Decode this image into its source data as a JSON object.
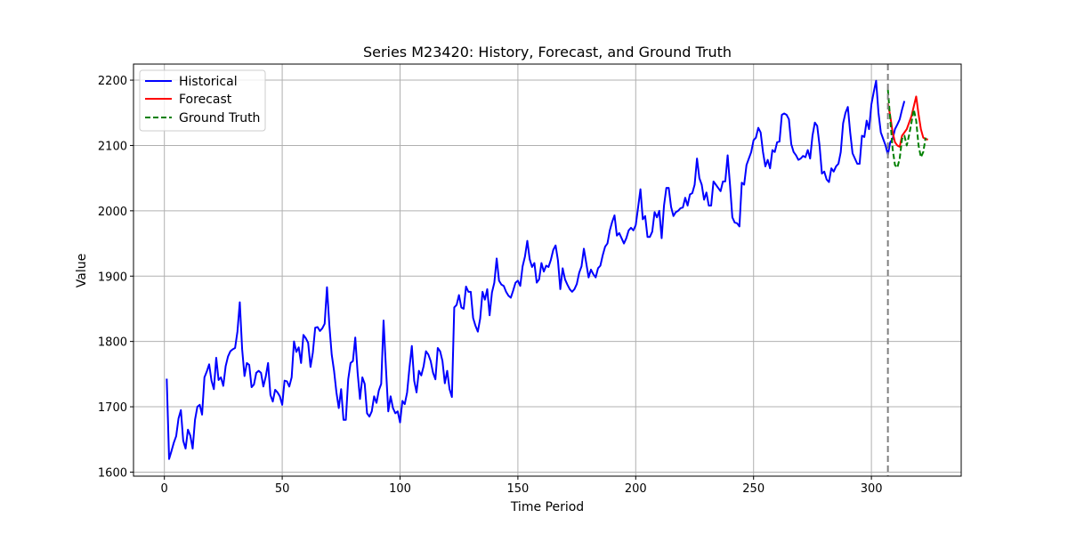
{
  "chart_data": {
    "type": "line",
    "title": "Series M23420: History, Forecast, and Ground Truth",
    "xlabel": "Time Period",
    "ylabel": "Value",
    "xlim": [
      -13.1,
      338.1
    ],
    "ylim": [
      1593.8,
      2224.6
    ],
    "xticks": [
      0,
      50,
      100,
      150,
      200,
      250,
      300
    ],
    "yticks": [
      1600,
      1700,
      1800,
      1900,
      2000,
      2100,
      2200
    ],
    "grid": true,
    "legend_position": "top-left",
    "forecast_start_marker": 307,
    "series": [
      {
        "name": "Historical",
        "color": "#0000ff",
        "style": "solid",
        "x_start": 1,
        "values": [
          1743,
          1620,
          1632,
          1645,
          1655,
          1682,
          1695,
          1648,
          1636,
          1665,
          1656,
          1636,
          1680,
          1700,
          1703,
          1688,
          1745,
          1754,
          1765,
          1740,
          1727,
          1775,
          1741,
          1745,
          1732,
          1762,
          1777,
          1785,
          1788,
          1790,
          1815,
          1860,
          1788,
          1747,
          1767,
          1764,
          1730,
          1734,
          1752,
          1755,
          1752,
          1731,
          1746,
          1767,
          1718,
          1708,
          1726,
          1722,
          1716,
          1703,
          1740,
          1739,
          1731,
          1745,
          1800,
          1784,
          1791,
          1767,
          1810,
          1805,
          1798,
          1761,
          1783,
          1821,
          1822,
          1816,
          1820,
          1827,
          1883,
          1825,
          1780,
          1755,
          1722,
          1698,
          1727,
          1680,
          1680,
          1742,
          1767,
          1770,
          1806,
          1752,
          1712,
          1745,
          1735,
          1690,
          1685,
          1693,
          1716,
          1706,
          1725,
          1735,
          1832,
          1760,
          1693,
          1716,
          1698,
          1690,
          1693,
          1676,
          1709,
          1704,
          1722,
          1760,
          1793,
          1740,
          1722,
          1755,
          1748,
          1762,
          1785,
          1780,
          1770,
          1752,
          1742,
          1790,
          1785,
          1770,
          1736,
          1755,
          1727,
          1715,
          1852,
          1856,
          1871,
          1852,
          1850,
          1884,
          1876,
          1876,
          1836,
          1824,
          1815,
          1835,
          1876,
          1864,
          1880,
          1840,
          1875,
          1890,
          1927,
          1893,
          1887,
          1885,
          1876,
          1870,
          1867,
          1878,
          1890,
          1893,
          1885,
          1915,
          1930,
          1954,
          1926,
          1914,
          1920,
          1890,
          1895,
          1920,
          1907,
          1916,
          1914,
          1925,
          1940,
          1947,
          1924,
          1880,
          1912,
          1895,
          1887,
          1880,
          1876,
          1880,
          1888,
          1905,
          1915,
          1942,
          1920,
          1898,
          1910,
          1903,
          1898,
          1912,
          1916,
          1932,
          1945,
          1950,
          1970,
          1983,
          1993,
          1962,
          1966,
          1958,
          1950,
          1958,
          1970,
          1974,
          1970,
          1978,
          2005,
          2033,
          1987,
          1992,
          1960,
          1960,
          1968,
          1998,
          1990,
          2000,
          1958,
          2008,
          2035,
          2035,
          2006,
          1992,
          1998,
          2000,
          2004,
          2005,
          2020,
          2008,
          2025,
          2027,
          2040,
          2080,
          2050,
          2040,
          2017,
          2028,
          2008,
          2008,
          2045,
          2040,
          2035,
          2030,
          2045,
          2045,
          2085,
          2040,
          1990,
          1982,
          1981,
          1976,
          2043,
          2040,
          2070,
          2080,
          2090,
          2108,
          2112,
          2127,
          2120,
          2090,
          2068,
          2078,
          2065,
          2093,
          2090,
          2105,
          2106,
          2147,
          2149,
          2147,
          2140,
          2102,
          2090,
          2085,
          2078,
          2080,
          2084,
          2082,
          2093,
          2080,
          2115,
          2135,
          2130,
          2100,
          2057,
          2060,
          2048,
          2044,
          2065,
          2060,
          2068,
          2072,
          2090,
          2134,
          2150,
          2159,
          2120,
          2088,
          2080,
          2072,
          2072,
          2115,
          2113,
          2138,
          2125,
          2163,
          2182,
          2199,
          2150,
          2120,
          2110,
          2100,
          2086,
          2105,
          2110,
          2125,
          2132,
          2140,
          2155,
          2168
        ]
      },
      {
        "name": "Forecast",
        "color": "#ff0000",
        "style": "solid",
        "x_start": 307,
        "values": [
          2165,
          2145,
          2120,
          2105,
          2100,
          2098,
          2115,
          2120,
          2125,
          2135,
          2145,
          2160,
          2175,
          2148,
          2125,
          2112,
          2110,
          2109
        ]
      },
      {
        "name": "Ground Truth",
        "color": "#008000",
        "style": "dashed",
        "x_start": 307,
        "values": [
          2185,
          2140,
          2095,
          2070,
          2066,
          2080,
          2110,
          2115,
          2100,
          2116,
          2135,
          2155,
          2138,
          2100,
          2082,
          2090,
          2112
        ]
      }
    ]
  }
}
